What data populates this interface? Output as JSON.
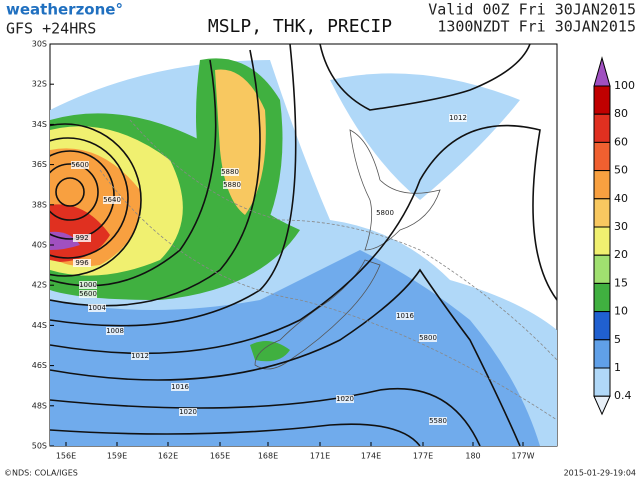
{
  "header": {
    "logo": "weatherzone°",
    "model": "GFS +24HRS",
    "title": "MSLP, THK, PRECIP",
    "valid_utc": "Valid 00Z Fri 30JAN2015",
    "valid_local": "1300NZDT Fri 30JAN2015"
  },
  "latitudes": [
    "30S",
    "32S",
    "34S",
    "36S",
    "38S",
    "40S",
    "42S",
    "44S",
    "46S",
    "48S",
    "50S"
  ],
  "longitudes": [
    "156E",
    "159E",
    "162E",
    "165E",
    "168E",
    "171E",
    "174E",
    "177E",
    "180",
    "177W"
  ],
  "contour_labels": [
    "5600",
    "5640",
    "992",
    "996",
    "1000",
    "5600",
    "1004",
    "1008",
    "1012",
    "1016",
    "1020",
    "5880",
    "5880",
    "1012",
    "5800",
    "1016",
    "5800",
    "1020",
    "5580"
  ],
  "colorbar": {
    "labels": [
      100,
      80,
      60,
      50,
      40,
      30,
      20,
      15,
      10,
      5,
      1,
      0.4
    ],
    "colors": [
      "#a050c0",
      "#c00000",
      "#e03020",
      "#f06030",
      "#f8a040",
      "#f8c860",
      "#f0f070",
      "#a0e070",
      "#40b040",
      "#2060d0",
      "#60a0e8",
      "#b0d8f8",
      "#e8f0f8"
    ]
  },
  "footer": {
    "credit": "©NDS: COLA/IGES",
    "timestamp": "2015-01-29-19:04"
  }
}
